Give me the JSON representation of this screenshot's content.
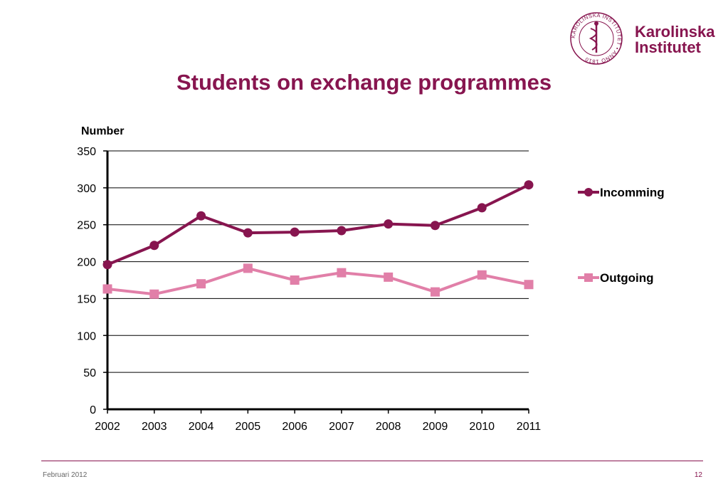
{
  "slide": {
    "title": "Students on exchange programmes",
    "footer_date": "Februari 2012",
    "page_number": "12"
  },
  "logo": {
    "line1": "Karolinska",
    "line2": "Institutet",
    "seal_text": "KAROLINSKA INSTITUTET • ANNO 1810"
  },
  "colors": {
    "brand": "#87154f",
    "incoming": "#87154f",
    "outgoing": "#e17fa8",
    "axis": "#000000"
  },
  "chart_data": {
    "type": "line",
    "ylabel": "Number",
    "xlabel": "",
    "categories": [
      "2002",
      "2003",
      "2004",
      "2005",
      "2006",
      "2007",
      "2008",
      "2009",
      "2010",
      "2011"
    ],
    "ylim": [
      0,
      350
    ],
    "yticks": [
      0,
      50,
      100,
      150,
      200,
      250,
      300,
      350
    ],
    "grid": true,
    "legend_position": "right",
    "series": [
      {
        "name": "Incomming",
        "marker": "circle",
        "color": "#87154f",
        "values": [
          196,
          222,
          262,
          239,
          240,
          242,
          251,
          249,
          273,
          304
        ]
      },
      {
        "name": "Outgoing",
        "marker": "square",
        "color": "#e17fa8",
        "values": [
          163,
          156,
          170,
          191,
          175,
          185,
          179,
          159,
          182,
          169
        ]
      }
    ]
  }
}
